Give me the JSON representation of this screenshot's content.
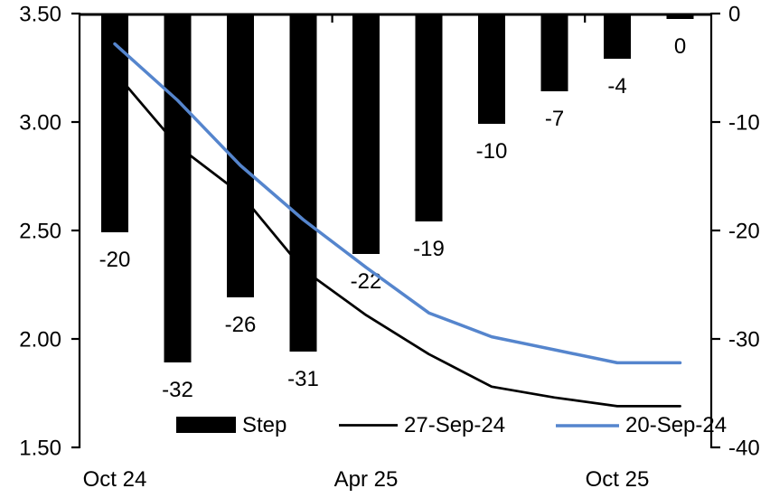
{
  "chart_data": {
    "type": "combo-bar-line",
    "categories_count": 10,
    "x_tick_labels": [
      {
        "label": "Oct 24",
        "category_index": 0
      },
      {
        "label": "Apr 25",
        "category_index": 4
      },
      {
        "label": "Oct 25",
        "category_index": 8
      }
    ],
    "left_axis": {
      "min": 1.5,
      "max": 3.5,
      "tick_values": [
        3.5,
        3.0,
        2.5,
        2.0,
        1.5
      ],
      "tick_labels": [
        "3.50",
        "3.00",
        "2.50",
        "2.00",
        "1.50"
      ]
    },
    "right_axis": {
      "min": -40,
      "max": 0,
      "tick_values": [
        0,
        -10,
        -20,
        -30,
        -40
      ],
      "tick_labels": [
        "0",
        "-10",
        "-20",
        "-30",
        "-40"
      ]
    },
    "bar_series": {
      "name": "Step",
      "axis": "right",
      "color": "#000000",
      "values": [
        -20,
        -32,
        -26,
        -31,
        -22,
        -19,
        -10,
        -7,
        -4,
        0
      ],
      "data_labels": [
        "-20",
        "-32",
        "-26",
        "-31",
        "-22",
        "-19",
        "-10",
        "-7",
        "-4",
        "0"
      ]
    },
    "line_series": [
      {
        "name": "27-Sep-24",
        "axis": "left",
        "color": "#000000",
        "stroke_width": 2.75,
        "values": [
          3.23,
          2.89,
          2.67,
          2.32,
          2.11,
          1.93,
          1.78,
          1.73,
          1.69,
          1.69
        ]
      },
      {
        "name": "20-Sep-24",
        "axis": "left",
        "color": "#5585CD",
        "stroke_width": 3.5,
        "values": [
          3.36,
          3.1,
          2.8,
          2.55,
          2.33,
          2.12,
          2.01,
          1.95,
          1.89,
          1.89
        ]
      }
    ],
    "legend": [
      {
        "label": "Step",
        "type": "bar",
        "color": "#000000"
      },
      {
        "label": "27-Sep-24",
        "type": "line",
        "color": "#000000"
      },
      {
        "label": "20-Sep-24",
        "type": "line",
        "color": "#5585CD"
      }
    ],
    "grid": "off",
    "legend_position": "bottom-inside",
    "colors": {
      "bar": "#000000",
      "line_27sep": "#000000",
      "line_20sep": "#5585CD",
      "axis": "#000000",
      "background": "#ffffff"
    }
  }
}
